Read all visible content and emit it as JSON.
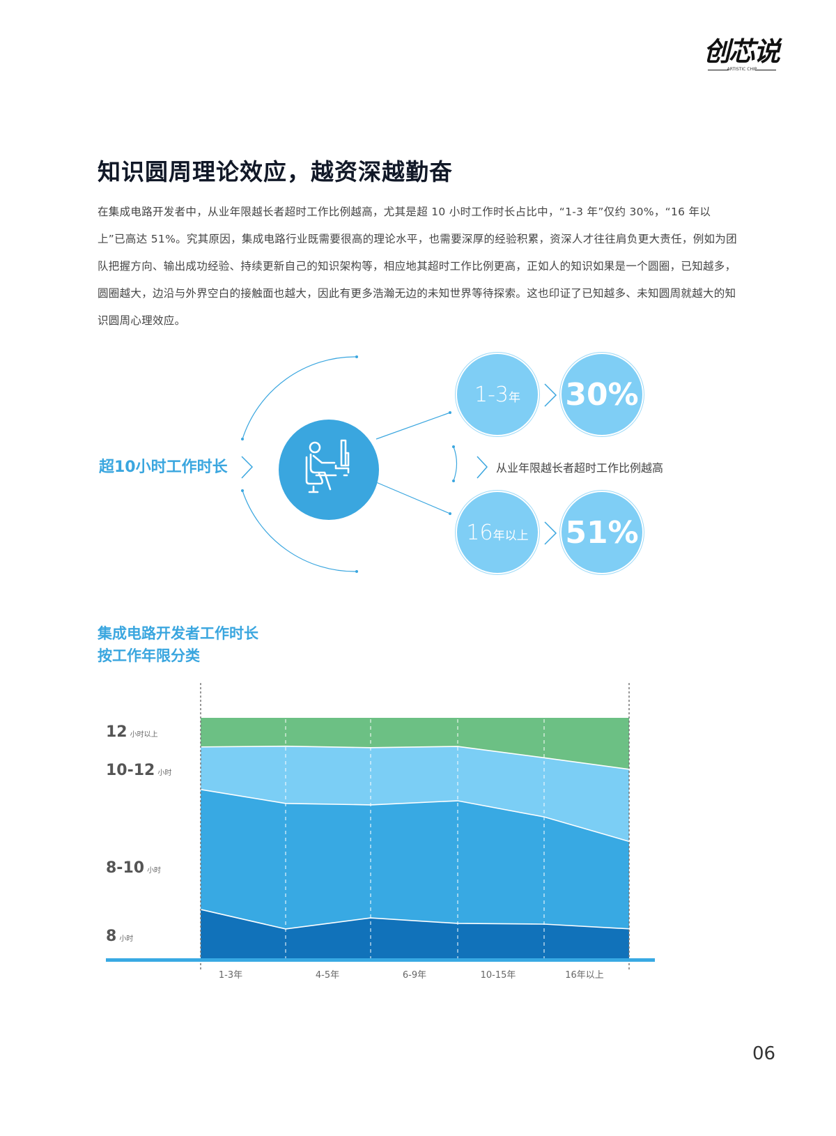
{
  "logo": {
    "text": "创芯说",
    "subtitle": "ARTISTIC CHIP"
  },
  "page": {
    "title": "知识圆周理论效应，越资深越勤奋",
    "paragraph": "在集成电路开发者中，从业年限越长者超时工作比例越高，尤其是超 10 小时工作时长占比中，“1-3 年”仅约 30%，“16 年以上”已高达 51%。究其原因，集成电路行业既需要很高的理论水平，也需要深厚的经验积累，资深人才往往肩负更大责任，例如为团队把握方向、输出成功经验、持续更新自己的知识架构等，相应地其超时工作比例更高，正如人的知识如果是一个圆圈，已知越多，圆圈越大，边沿与外界空白的接触面也越大，因此有更多浩瀚无边的未知世界等待探索。这也印证了已知越多、未知圆周就越大的知识圆周心理效应。",
    "page_number": "06"
  },
  "diagram": {
    "left_label": "超10小时工作时长",
    "center_icon": "person-at-computer-icon",
    "items": [
      {
        "years_num": "1-3",
        "years_unit": "年",
        "percent": "30%"
      },
      {
        "years_num": "16",
        "years_unit": "年以上",
        "percent": "51%"
      }
    ],
    "note": "从业年限越长者超时工作比例越高",
    "colors": {
      "primary": "#3aa6df",
      "light": "#7fcef5"
    }
  },
  "chart_data": {
    "type": "area",
    "stacked": true,
    "normalized": true,
    "title": "集成电路开发者工作时长 按工作年限分类",
    "title_lines": [
      "集成电路开发者工作时长",
      "按工作年限分类"
    ],
    "categories": [
      "1-3年",
      "4-5年",
      "6-9年",
      "10-15年",
      "16年以上"
    ],
    "point_count": 6,
    "series": [
      {
        "name": "8小时",
        "label_num": "8",
        "label_unit": "小时",
        "color": "#1172ba",
        "values": [
          20.3,
          12.2,
          16.8,
          14.5,
          14.2,
          12.2
        ]
      },
      {
        "name": "8-10小时",
        "label_num": "8-10",
        "label_unit": "小时",
        "color": "#38a9e3",
        "values": [
          49.9,
          52.2,
          47.0,
          51.0,
          44.6,
          36.2
        ]
      },
      {
        "name": "10-12小时",
        "label_num": "10-12",
        "label_unit": "小时",
        "color": "#7bcef5",
        "values": [
          17.7,
          23.8,
          23.8,
          22.6,
          24.6,
          29.9
        ]
      },
      {
        "name": "12小时以上",
        "label_num": "12",
        "label_unit": "小时以上",
        "color": "#6cc084",
        "values": [
          12.1,
          11.8,
          12.4,
          11.9,
          16.6,
          21.3
        ]
      }
    ],
    "xlabel": "",
    "ylabel": "",
    "ylim": [
      0,
      100
    ],
    "grid": "vertical dashed",
    "legend_position": "left, as inline labels"
  }
}
